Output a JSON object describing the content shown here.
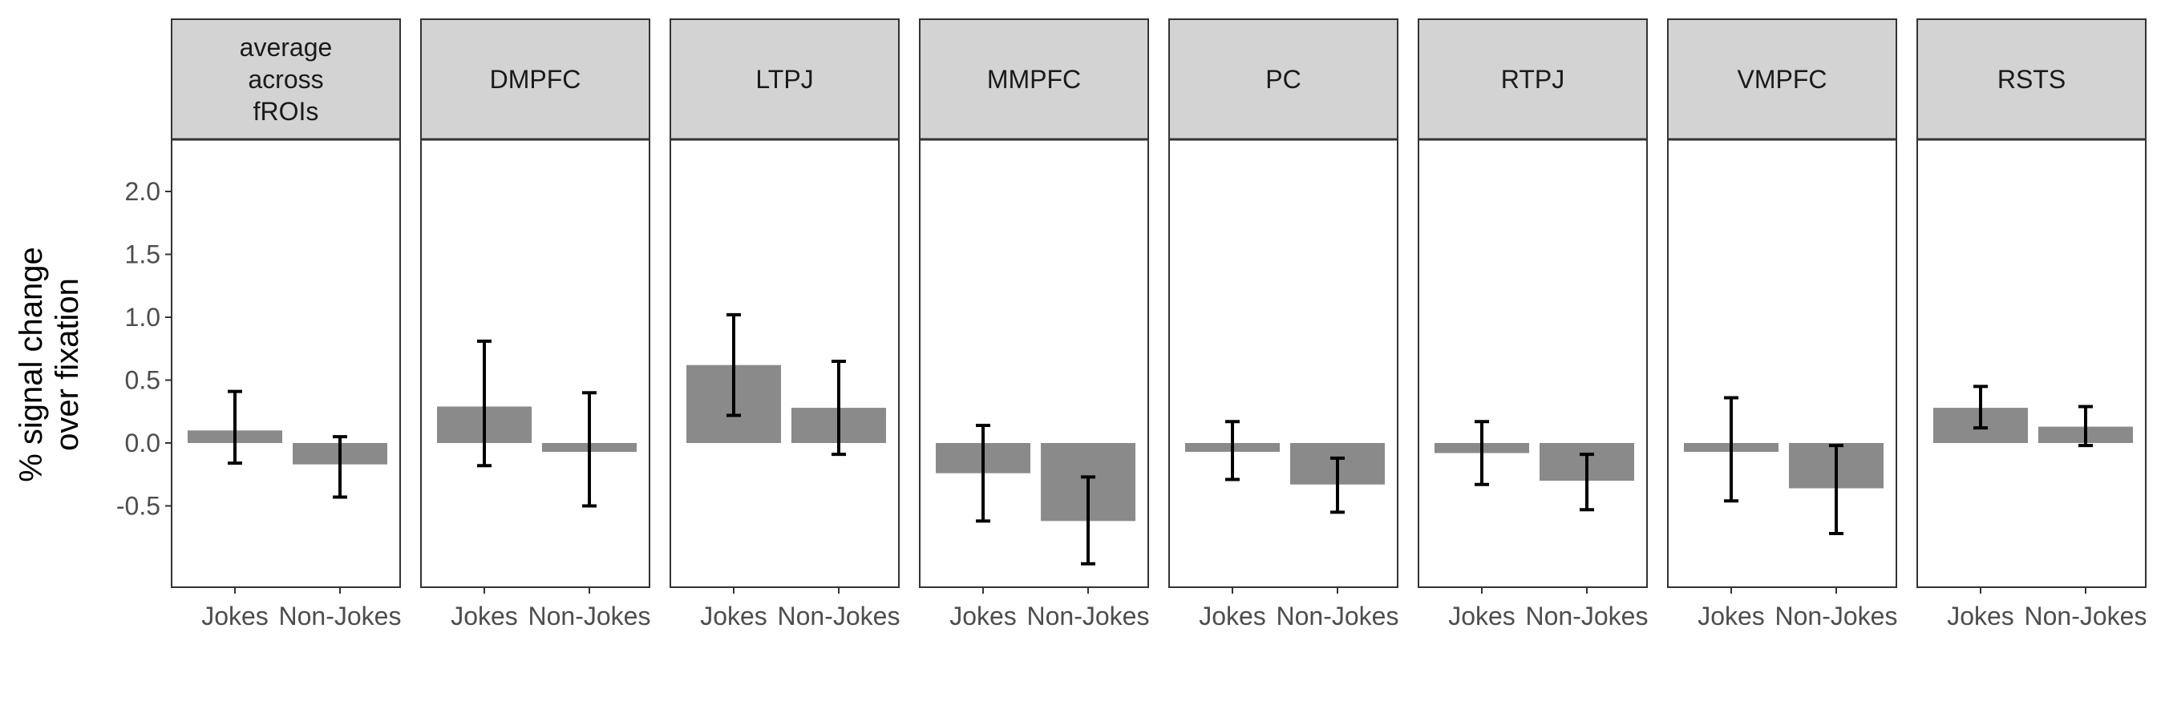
{
  "chart_data": {
    "type": "bar",
    "ylabel": [
      "% signal change",
      "over fixation"
    ],
    "y_ticks": [
      "2.0",
      "1.5",
      "1.0",
      "0.5",
      "0.0",
      "-0.5"
    ],
    "y_tick_values": [
      2.0,
      1.5,
      1.0,
      0.5,
      0.0,
      -0.5
    ],
    "ylim": [
      -1.15,
      2.35
    ],
    "categories": [
      "Jokes",
      "Non-Jokes"
    ],
    "bar_color": "#8a8a8a",
    "strip_color": "#d3d3d3",
    "grid": false,
    "panels": [
      {
        "title": [
          "average",
          "across",
          "fROIs"
        ],
        "values": [
          0.1,
          -0.17
        ],
        "error_low": [
          -0.16,
          -0.43
        ],
        "error_high": [
          0.41,
          0.05
        ]
      },
      {
        "title": [
          "DMPFC"
        ],
        "values": [
          0.29,
          -0.07
        ],
        "error_low": [
          -0.18,
          -0.5
        ],
        "error_high": [
          0.81,
          0.4
        ]
      },
      {
        "title": [
          "LTPJ"
        ],
        "values": [
          0.62,
          0.28
        ],
        "error_low": [
          0.22,
          -0.09
        ],
        "error_high": [
          1.02,
          0.65
        ]
      },
      {
        "title": [
          "MMPFC"
        ],
        "values": [
          -0.24,
          -0.62
        ],
        "error_low": [
          -0.62,
          -0.96
        ],
        "error_high": [
          0.14,
          -0.27
        ]
      },
      {
        "title": [
          "PC"
        ],
        "values": [
          -0.07,
          -0.33
        ],
        "error_low": [
          -0.29,
          -0.55
        ],
        "error_high": [
          0.17,
          -0.12
        ]
      },
      {
        "title": [
          "RTPJ"
        ],
        "values": [
          -0.08,
          -0.3
        ],
        "error_low": [
          -0.33,
          -0.53
        ],
        "error_high": [
          0.17,
          -0.09
        ]
      },
      {
        "title": [
          "VMPFC"
        ],
        "values": [
          -0.07,
          -0.36
        ],
        "error_low": [
          -0.46,
          -0.72
        ],
        "error_high": [
          0.36,
          -0.02
        ]
      },
      {
        "title": [
          "RSTS"
        ],
        "values": [
          0.28,
          0.13
        ],
        "error_low": [
          0.12,
          -0.02
        ],
        "error_high": [
          0.45,
          0.29
        ]
      }
    ]
  }
}
